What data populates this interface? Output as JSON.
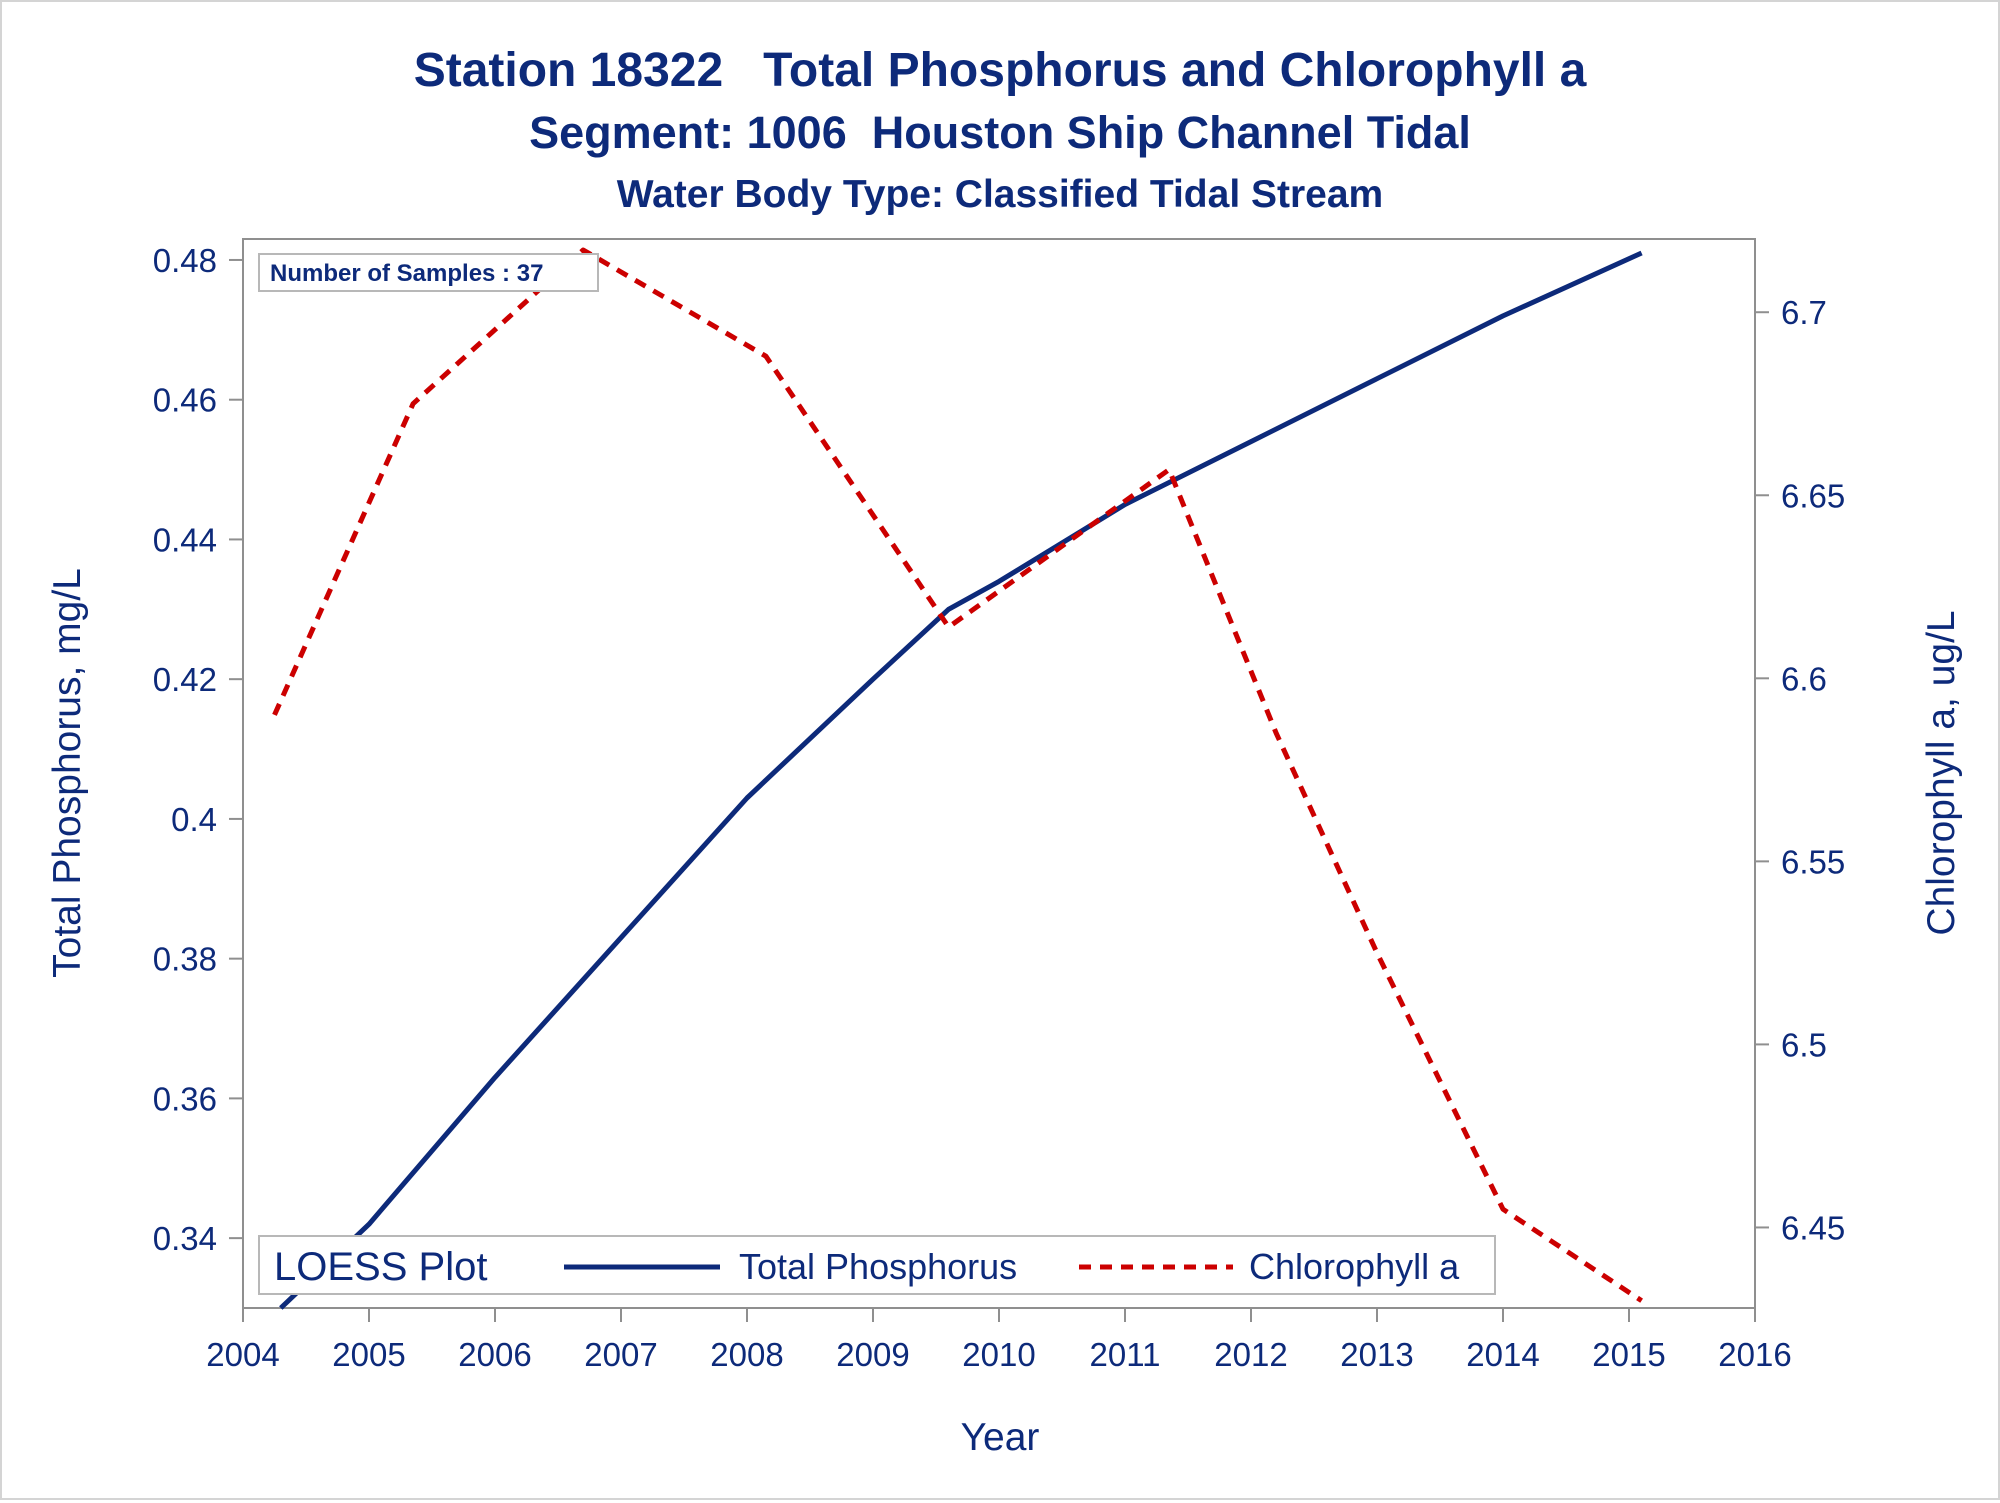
{
  "chart_data": {
    "type": "line",
    "title": "Station 18322   Total Phosphorus and Chlorophyll a",
    "subtitle": "Segment: 1006  Houston Ship Channel Tidal",
    "subtitle2": "Water Body Type: Classified Tidal Stream",
    "xlabel": "Year",
    "ylabel_left": "Total Phosphorus, mg/L",
    "ylabel_right": "Chlorophyll a, ug/L",
    "xlim": [
      2004,
      2016
    ],
    "ylim_left": [
      0.33,
      0.483
    ],
    "ylim_right": [
      6.428,
      6.72
    ],
    "x_ticks": [
      "2004",
      "2005",
      "2006",
      "2007",
      "2008",
      "2009",
      "2010",
      "2011",
      "2012",
      "2013",
      "2014",
      "2015",
      "2016"
    ],
    "y_ticks_left": [
      "0.34",
      "0.36",
      "0.38",
      "0.4",
      "0.42",
      "0.44",
      "0.46",
      "0.48"
    ],
    "y_ticks_right": [
      "6.45",
      "6.5",
      "6.55",
      "6.6",
      "6.65",
      "6.7"
    ],
    "grid": false,
    "annotation": "Number of Samples : 37",
    "legend": {
      "title": "LOESS Plot",
      "placement": "bottom-inside",
      "entries": [
        "Total Phosphorus",
        "Chlorophyll a"
      ]
    },
    "series": [
      {
        "name": "Total Phosphorus",
        "axis": "left",
        "color": "#0d2a7a",
        "style": "solid",
        "x": [
          2004.3,
          2005.0,
          2006.0,
          2007.0,
          2008.0,
          2009.0,
          2009.6,
          2010.0,
          2011.0,
          2012.0,
          2013.0,
          2014.0,
          2015.1
        ],
        "values": [
          0.33,
          0.342,
          0.363,
          0.383,
          0.403,
          0.42,
          0.43,
          0.434,
          0.445,
          0.454,
          0.463,
          0.472,
          0.481
        ]
      },
      {
        "name": "Chlorophyll a",
        "axis": "right",
        "color": "#cc0000",
        "style": "dashed",
        "x": [
          2004.25,
          2005.35,
          2006.7,
          2008.15,
          2009.6,
          2011.35,
          2012.2,
          2013.0,
          2014.0,
          2015.1
        ],
        "values": [
          6.59,
          6.675,
          6.717,
          6.688,
          6.614,
          6.657,
          6.585,
          6.525,
          6.455,
          6.43
        ]
      }
    ]
  }
}
